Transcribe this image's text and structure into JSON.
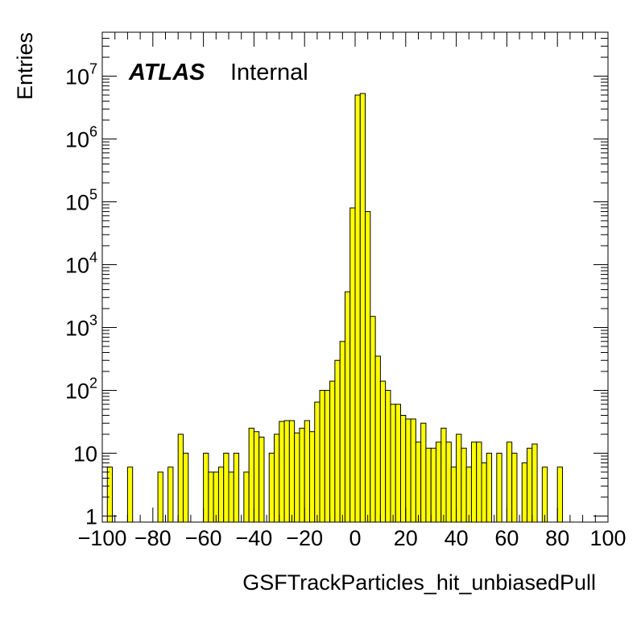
{
  "chart_data": {
    "type": "bar",
    "style": "histogram-step",
    "xlabel": "GSFTrackParticles_hit_unbiasedPull",
    "ylabel": "Entries",
    "xlim": [
      -100,
      100
    ],
    "ylim": [
      0.8,
      50000000
    ],
    "yscale": "log",
    "bin_width": 2,
    "fill_color": "#ffff00",
    "line_color": "#000000",
    "grid": false,
    "x_tick_labels": [
      {
        "value": -100,
        "label": "−100"
      },
      {
        "value": -80,
        "label": "−80"
      },
      {
        "value": -60,
        "label": "−60"
      },
      {
        "value": -40,
        "label": "−40"
      },
      {
        "value": -20,
        "label": "−20"
      },
      {
        "value": 0,
        "label": "0"
      },
      {
        "value": 20,
        "label": "20"
      },
      {
        "value": 40,
        "label": "40"
      },
      {
        "value": 60,
        "label": "60"
      },
      {
        "value": 80,
        "label": "80"
      },
      {
        "value": 100,
        "label": "100"
      }
    ],
    "y_tick_labels": [
      {
        "value": 1,
        "base": "1",
        "exp": ""
      },
      {
        "value": 10,
        "base": "10",
        "exp": ""
      },
      {
        "value": 100,
        "base": "10",
        "exp": "2"
      },
      {
        "value": 1000,
        "base": "10",
        "exp": "3"
      },
      {
        "value": 10000,
        "base": "10",
        "exp": "4"
      },
      {
        "value": 100000,
        "base": "10",
        "exp": "5"
      },
      {
        "value": 1000000,
        "base": "10",
        "exp": "6"
      },
      {
        "value": 10000000,
        "base": "10",
        "exp": "7"
      }
    ],
    "bins": [
      {
        "x": -96,
        "y": 6
      },
      {
        "x": -88,
        "y": 6
      },
      {
        "x": -76,
        "y": 5
      },
      {
        "x": -72,
        "y": 6
      },
      {
        "x": -68,
        "y": 20
      },
      {
        "x": -66,
        "y": 10
      },
      {
        "x": -58,
        "y": 10
      },
      {
        "x": -56,
        "y": 5
      },
      {
        "x": -54,
        "y": 5
      },
      {
        "x": -52,
        "y": 6
      },
      {
        "x": -50,
        "y": 10
      },
      {
        "x": -48,
        "y": 5
      },
      {
        "x": -46,
        "y": 10
      },
      {
        "x": -42,
        "y": 5
      },
      {
        "x": -40,
        "y": 25
      },
      {
        "x": -38,
        "y": 22
      },
      {
        "x": -36,
        "y": 18
      },
      {
        "x": -32,
        "y": 10
      },
      {
        "x": -30,
        "y": 20
      },
      {
        "x": -28,
        "y": 32
      },
      {
        "x": -26,
        "y": 33
      },
      {
        "x": -24,
        "y": 33
      },
      {
        "x": -22,
        "y": 21
      },
      {
        "x": -20,
        "y": 25
      },
      {
        "x": -18,
        "y": 33
      },
      {
        "x": -16,
        "y": 22
      },
      {
        "x": -14,
        "y": 65
      },
      {
        "x": -12,
        "y": 100
      },
      {
        "x": -10,
        "y": 100
      },
      {
        "x": -8,
        "y": 140
      },
      {
        "x": -6,
        "y": 300
      },
      {
        "x": -4,
        "y": 600
      },
      {
        "x": -2,
        "y": 3700
      },
      {
        "x": 0,
        "y": 80000
      },
      {
        "x": 2,
        "y": 5000000
      },
      {
        "x": 4,
        "y": 5300000
      },
      {
        "x": 6,
        "y": 70000
      },
      {
        "x": 8,
        "y": 1500
      },
      {
        "x": 10,
        "y": 350
      },
      {
        "x": 12,
        "y": 140
      },
      {
        "x": 14,
        "y": 100
      },
      {
        "x": 16,
        "y": 60
      },
      {
        "x": 18,
        "y": 60
      },
      {
        "x": 20,
        "y": 40
      },
      {
        "x": 22,
        "y": 35
      },
      {
        "x": 24,
        "y": 35
      },
      {
        "x": 26,
        "y": 15
      },
      {
        "x": 28,
        "y": 30
      },
      {
        "x": 30,
        "y": 12
      },
      {
        "x": 32,
        "y": 12
      },
      {
        "x": 34,
        "y": 15
      },
      {
        "x": 36,
        "y": 25
      },
      {
        "x": 38,
        "y": 15
      },
      {
        "x": 40,
        "y": 6
      },
      {
        "x": 42,
        "y": 20
      },
      {
        "x": 44,
        "y": 12
      },
      {
        "x": 46,
        "y": 6
      },
      {
        "x": 48,
        "y": 15
      },
      {
        "x": 50,
        "y": 15
      },
      {
        "x": 52,
        "y": 7
      },
      {
        "x": 54,
        "y": 10
      },
      {
        "x": 58,
        "y": 10
      },
      {
        "x": 62,
        "y": 15
      },
      {
        "x": 64,
        "y": 10
      },
      {
        "x": 68,
        "y": 7
      },
      {
        "x": 70,
        "y": 12
      },
      {
        "x": 72,
        "y": 14
      },
      {
        "x": 76,
        "y": 6
      },
      {
        "x": 82,
        "y": 6
      }
    ]
  },
  "labels": {
    "atlas": "ATLAS",
    "internal": "Internal"
  }
}
